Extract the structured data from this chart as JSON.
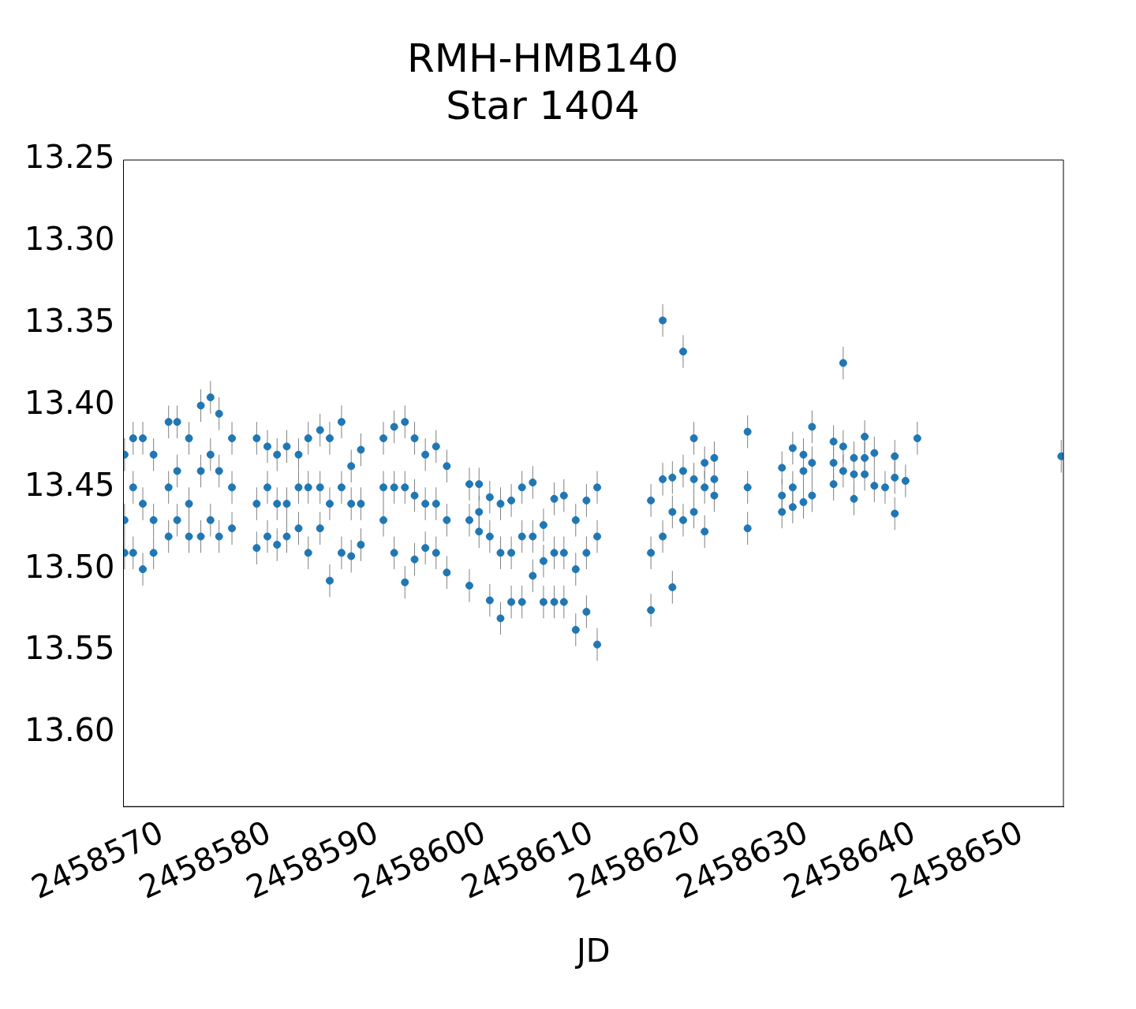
{
  "chart_data": {
    "type": "scatter",
    "title": "RMH-HMB140\nStar 1404",
    "xlabel": "JD",
    "marker": "circle",
    "grid": false,
    "legend": false,
    "xlim": [
      2458566.4,
      2458653.9
    ],
    "xticks": [
      2458570,
      2458580,
      2458590,
      2458600,
      2458610,
      2458620,
      2458630,
      2458640,
      2458650
    ],
    "ylim": [
      13.645,
      13.25
    ],
    "yticks": [
      13.25,
      {
        "value": 13.3,
        "label": "13.30"
      },
      13.35,
      {
        "value": 13.4,
        "label": "13.40"
      },
      13.45,
      {
        "value": 13.5,
        "label": "13.50"
      },
      13.55,
      {
        "value": 13.6,
        "label": "13.60"
      }
    ],
    "series": [
      {
        "color": "#1f77b4",
        "x": [
          2458566.5,
          2458566.5,
          2458566.5,
          2458567.3,
          2458567.3,
          2458567.3,
          2458568.2,
          2458568.2,
          2458568.2,
          2458569.2,
          2458569.2,
          2458569.2,
          2458570.6,
          2458570.6,
          2458570.6,
          2458571.4,
          2458571.4,
          2458571.4,
          2458572.5,
          2458572.5,
          2458572.5,
          2458573.6,
          2458573.6,
          2458573.6,
          2458574.5,
          2458574.5,
          2458574.5,
          2458575.3,
          2458575.3,
          2458575.3,
          2458576.5,
          2458576.5,
          2458576.5,
          2458578.8,
          2458578.8,
          2458578.8,
          2458579.8,
          2458579.8,
          2458579.8,
          2458580.7,
          2458580.7,
          2458580.7,
          2458581.6,
          2458581.6,
          2458581.6,
          2458582.7,
          2458582.7,
          2458582.7,
          2458583.6,
          2458583.6,
          2458583.6,
          2458584.7,
          2458584.7,
          2458584.7,
          2458585.6,
          2458585.6,
          2458585.6,
          2458586.7,
          2458586.7,
          2458586.7,
          2458587.6,
          2458587.6,
          2458587.6,
          2458588.5,
          2458588.5,
          2458588.5,
          2458590.6,
          2458590.6,
          2458590.6,
          2458591.6,
          2458591.6,
          2458591.6,
          2458592.6,
          2458592.6,
          2458592.6,
          2458593.5,
          2458593.5,
          2458593.5,
          2458594.5,
          2458594.5,
          2458594.5,
          2458595.5,
          2458595.5,
          2458595.5,
          2458596.5,
          2458596.5,
          2458596.5,
          2458598.6,
          2458598.6,
          2458598.6,
          2458599.5,
          2458599.5,
          2458599.5,
          2458600.5,
          2458600.5,
          2458600.5,
          2458601.5,
          2458601.5,
          2458601.5,
          2458602.5,
          2458602.5,
          2458602.5,
          2458603.5,
          2458603.5,
          2458603.5,
          2458604.5,
          2458604.5,
          2458604.5,
          2458605.5,
          2458605.5,
          2458605.5,
          2458606.5,
          2458606.5,
          2458606.5,
          2458607.4,
          2458607.4,
          2458607.4,
          2458608.5,
          2458608.5,
          2458608.5,
          2458609.5,
          2458609.5,
          2458609.5,
          2458610.5,
          2458610.5,
          2458610.5,
          2458615.5,
          2458615.5,
          2458615.5,
          2458616.6,
          2458616.6,
          2458616.6,
          2458617.5,
          2458617.5,
          2458617.5,
          2458618.5,
          2458618.5,
          2458618.5,
          2458619.5,
          2458619.5,
          2458619.5,
          2458620.5,
          2458620.5,
          2458620.5,
          2458621.4,
          2458621.4,
          2458621.4,
          2458624.5,
          2458624.5,
          2458624.5,
          2458627.7,
          2458627.7,
          2458627.7,
          2458628.7,
          2458628.7,
          2458628.7,
          2458629.7,
          2458629.7,
          2458629.7,
          2458630.5,
          2458630.5,
          2458630.5,
          2458632.5,
          2458632.5,
          2458632.5,
          2458633.4,
          2458633.4,
          2458633.4,
          2458634.4,
          2458634.4,
          2458634.4,
          2458635.4,
          2458635.4,
          2458635.4,
          2458636.3,
          2458636.3,
          2458637.3,
          2458638.2,
          2458638.2,
          2458638.2,
          2458639.2,
          2458640.3,
          2458653.7
        ],
        "values": [
          13.43,
          13.47,
          13.49,
          13.42,
          13.45,
          13.49,
          13.42,
          13.46,
          13.5,
          13.43,
          13.47,
          13.49,
          13.41,
          13.45,
          13.48,
          13.41,
          13.44,
          13.47,
          13.42,
          13.46,
          13.48,
          13.4,
          13.44,
          13.48,
          13.395,
          13.43,
          13.47,
          13.405,
          13.44,
          13.48,
          13.42,
          13.45,
          13.475,
          13.42,
          13.46,
          13.487,
          13.425,
          13.45,
          13.48,
          13.43,
          13.46,
          13.485,
          13.425,
          13.46,
          13.48,
          13.43,
          13.45,
          13.475,
          13.42,
          13.45,
          13.49,
          13.415,
          13.45,
          13.475,
          13.42,
          13.46,
          13.507,
          13.41,
          13.45,
          13.49,
          13.437,
          13.46,
          13.492,
          13.427,
          13.46,
          13.485,
          13.42,
          13.45,
          13.47,
          13.413,
          13.45,
          13.49,
          13.41,
          13.45,
          13.508,
          13.42,
          13.455,
          13.494,
          13.43,
          13.46,
          13.487,
          13.425,
          13.46,
          13.49,
          13.437,
          13.47,
          13.502,
          13.448,
          13.47,
          13.51,
          13.448,
          13.465,
          13.477,
          13.456,
          13.48,
          13.519,
          13.46,
          13.49,
          13.53,
          13.458,
          13.49,
          13.52,
          13.45,
          13.48,
          13.52,
          13.447,
          13.48,
          13.504,
          13.473,
          13.495,
          13.52,
          13.457,
          13.49,
          13.52,
          13.455,
          13.49,
          13.52,
          13.47,
          13.5,
          13.537,
          13.458,
          13.49,
          13.526,
          13.45,
          13.48,
          13.546,
          13.458,
          13.49,
          13.525,
          13.348,
          13.445,
          13.48,
          13.444,
          13.465,
          13.511,
          13.367,
          13.44,
          13.47,
          13.42,
          13.445,
          13.465,
          13.435,
          13.45,
          13.477,
          13.432,
          13.445,
          13.455,
          13.416,
          13.45,
          13.475,
          13.438,
          13.455,
          13.465,
          13.426,
          13.45,
          13.462,
          13.43,
          13.44,
          13.459,
          13.413,
          13.435,
          13.455,
          13.422,
          13.435,
          13.448,
          13.374,
          13.425,
          13.44,
          13.432,
          13.442,
          13.457,
          13.419,
          13.432,
          13.442,
          13.429,
          13.449,
          13.45,
          13.431,
          13.444,
          13.466,
          13.446,
          13.42,
          13.431
        ],
        "errors": [
          0.01,
          0.01,
          0.01,
          0.01,
          0.01,
          0.01,
          0.01,
          0.01,
          0.01,
          0.01,
          0.01,
          0.01,
          0.01,
          0.01,
          0.01,
          0.01,
          0.01,
          0.01,
          0.01,
          0.01,
          0.01,
          0.01,
          0.01,
          0.01,
          0.01,
          0.01,
          0.01,
          0.01,
          0.01,
          0.01,
          0.01,
          0.01,
          0.01,
          0.01,
          0.01,
          0.01,
          0.01,
          0.01,
          0.01,
          0.01,
          0.01,
          0.01,
          0.01,
          0.01,
          0.01,
          0.01,
          0.01,
          0.01,
          0.01,
          0.01,
          0.01,
          0.01,
          0.01,
          0.01,
          0.01,
          0.01,
          0.01,
          0.01,
          0.01,
          0.01,
          0.01,
          0.01,
          0.01,
          0.01,
          0.01,
          0.01,
          0.01,
          0.01,
          0.01,
          0.01,
          0.01,
          0.01,
          0.01,
          0.01,
          0.01,
          0.01,
          0.01,
          0.01,
          0.01,
          0.01,
          0.01,
          0.01,
          0.01,
          0.01,
          0.01,
          0.01,
          0.01,
          0.01,
          0.01,
          0.01,
          0.01,
          0.01,
          0.01,
          0.01,
          0.01,
          0.01,
          0.01,
          0.01,
          0.01,
          0.01,
          0.01,
          0.01,
          0.01,
          0.01,
          0.01,
          0.01,
          0.01,
          0.01,
          0.01,
          0.01,
          0.01,
          0.01,
          0.01,
          0.01,
          0.01,
          0.01,
          0.01,
          0.01,
          0.01,
          0.01,
          0.01,
          0.01,
          0.01,
          0.01,
          0.01,
          0.01,
          0.01,
          0.01,
          0.01,
          0.01,
          0.01,
          0.01,
          0.01,
          0.01,
          0.01,
          0.01,
          0.01,
          0.01,
          0.01,
          0.01,
          0.01,
          0.01,
          0.01,
          0.01,
          0.01,
          0.01,
          0.01,
          0.01,
          0.01,
          0.01,
          0.01,
          0.01,
          0.01,
          0.01,
          0.01,
          0.01,
          0.01,
          0.01,
          0.01,
          0.01,
          0.01,
          0.01,
          0.01,
          0.01,
          0.01,
          0.01,
          0.01,
          0.01,
          0.01,
          0.01,
          0.01,
          0.01,
          0.01,
          0.01,
          0.01,
          0.01,
          0.01,
          0.01,
          0.01,
          0.01,
          0.01,
          0.01,
          0.01
        ]
      }
    ]
  }
}
